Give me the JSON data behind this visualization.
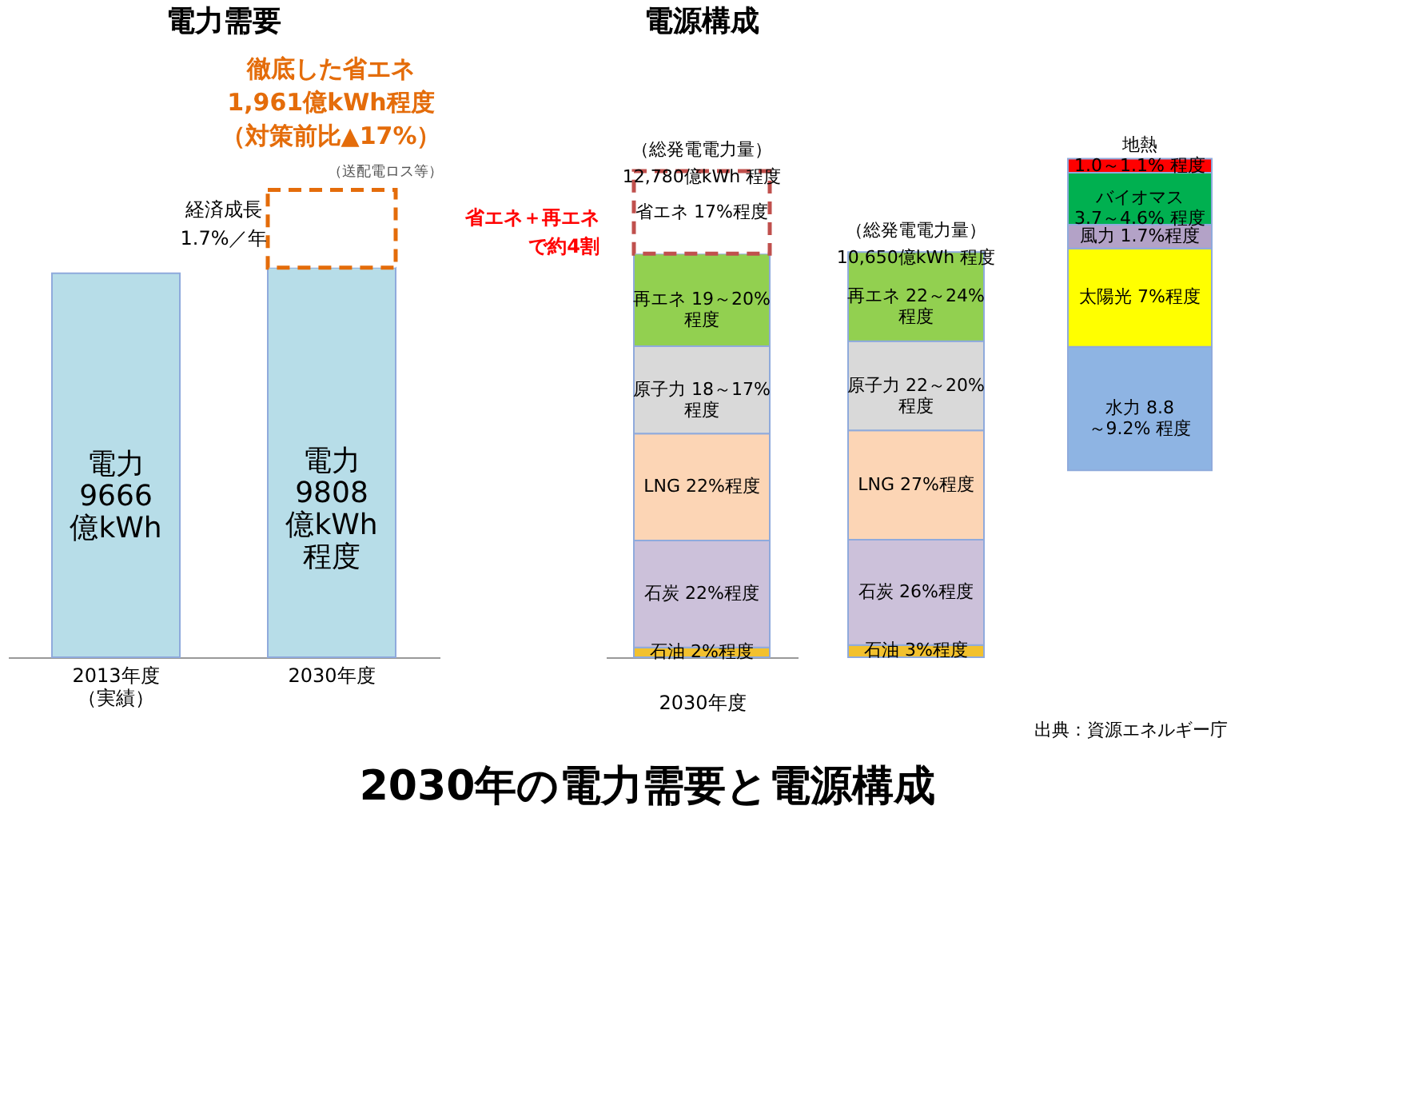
{
  "chart_data": [
    {
      "type": "bar",
      "stacked": true,
      "title": "電力需要",
      "categories": [
        "2013年度（実績）",
        "2030年度"
      ],
      "series": [
        {
          "color": "#b7dde8",
          "values": [
            9666,
            9808
          ],
          "value_labels": [
            "電力\n9666\n億kWh",
            "電力\n9808\n億kWh\n程度"
          ]
        },
        {
          "color": "#e46c0a",
          "line_style": "dashed",
          "values": [
            null,
            1961
          ]
        }
      ],
      "annotations": [
        "経済成長\n1.7%／年",
        "徹底した省エネ1,961億kWh程度（対策前比▲17%）",
        "（送配電ロス等）",
        "2030年の電力需要と電源構成"
      ]
    },
    {
      "type": "bar",
      "stacked": true,
      "title": "電源構成",
      "categories": [
        null
      ],
      "xlabel": "2030年度",
      "series": [
        {
          "color": "#f2c12e",
          "values": [
            2
          ],
          "value_labels": [
            "石油 2%程度"
          ]
        },
        {
          "color": "#ccc1da",
          "values": [
            22
          ],
          "value_labels": [
            "石炭 22%程度"
          ]
        },
        {
          "color": "#fcd5b5",
          "values": [
            22
          ],
          "value_labels": [
            "LNG 22%程度"
          ]
        },
        {
          "color": "#d9d9d9",
          "values": [
            18
          ],
          "value_labels": [
            "原子力 18～17%\n程度"
          ]
        },
        {
          "color": "#92d050",
          "values": [
            19
          ],
          "value_labels": [
            "再エネ 19～20%\n程度"
          ]
        },
        {
          "color": "#c0504d",
          "line_style": "dashed",
          "values": [
            17
          ],
          "value_labels": [
            "省エネ 17%程度"
          ]
        }
      ],
      "annotations": [
        "（総発電電力量）\n12,780億kWh 程度",
        "省エネ＋再エネで約4割"
      ]
    },
    {
      "type": "bar",
      "stacked": true,
      "categories": [
        null
      ],
      "series": [
        {
          "color": "#f2c12e",
          "values": [
            3
          ],
          "value_labels": [
            "石油 3%程度"
          ]
        },
        {
          "color": "#ccc1da",
          "values": [
            26
          ],
          "value_labels": [
            "石炭 26%程度"
          ]
        },
        {
          "color": "#fcd5b5",
          "values": [
            27
          ],
          "value_labels": [
            "LNG 27%程度"
          ]
        },
        {
          "color": "#d9d9d9",
          "values": [
            22
          ],
          "value_labels": [
            "原子力 22～20%\n程度"
          ]
        },
        {
          "color": "#92d050",
          "values": [
            22
          ],
          "value_labels": [
            "再エネ 22～24%\n程度"
          ]
        }
      ],
      "annotations": [
        "（総発電電力量）\n10,650億kWh 程度"
      ]
    },
    {
      "type": "bar",
      "stacked": true,
      "categories": [
        null
      ],
      "series": [
        {
          "color": "#8eb4e3",
          "values": [
            8.8
          ],
          "value_labels": [
            "水力 8.8\n～9.2% 程度"
          ]
        },
        {
          "color": "#ffff00",
          "values": [
            7
          ],
          "value_labels": [
            "太陽光 7%程度"
          ]
        },
        {
          "color": "#b3a2c7",
          "values": [
            1.7
          ],
          "value_labels": [
            "風力 1.7%程度"
          ]
        },
        {
          "color": "#00b050",
          "values": [
            3.7
          ],
          "value_labels": [
            "バイオマス\n3.7～4.6% 程度"
          ]
        },
        {
          "color": "#ff0000",
          "values": [
            1.0
          ],
          "value_labels": [
            "地熱\n1.0～1.1% 程度"
          ]
        }
      ],
      "annotations": [
        "出典：資源エネルギー庁"
      ]
    }
  ]
}
